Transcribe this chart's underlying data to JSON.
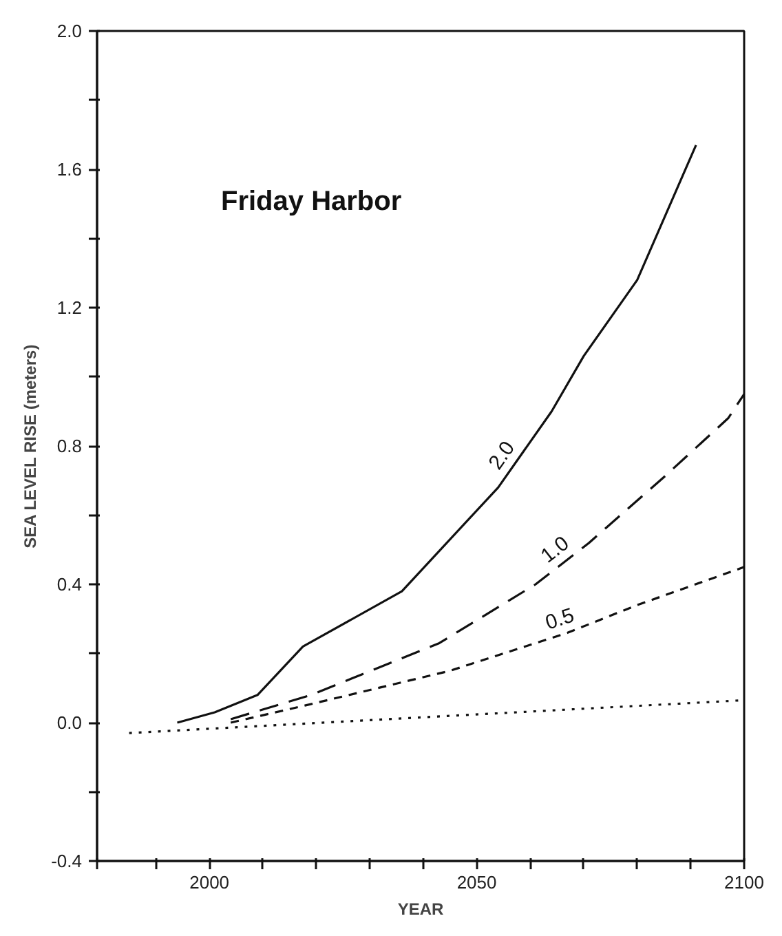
{
  "chart_data": {
    "type": "line",
    "xlabel": "YEAR",
    "ylabel": "SEA LEVEL RISE (meters)",
    "xlim": [
      1979,
      2100
    ],
    "ylim": [
      -0.4,
      2.0
    ],
    "xticks": [
      {
        "value": 1979,
        "label": null
      },
      {
        "value": 1990,
        "label": null
      },
      2000,
      {
        "value": 2010,
        "label": null
      },
      {
        "value": 2020,
        "label": null
      },
      {
        "value": 2030,
        "label": null
      },
      {
        "value": 2040,
        "label": null
      },
      2050,
      {
        "value": 2060,
        "label": null
      },
      {
        "value": 2070,
        "label": null
      },
      {
        "value": 2080,
        "label": null
      },
      {
        "value": 2090,
        "label": null
      },
      2100
    ],
    "yticks": [
      {
        "value": -0.4,
        "label": "-0.4"
      },
      {
        "value": -0.2,
        "label": null
      },
      {
        "value": 0.0,
        "label": "0.0"
      },
      {
        "value": 0.2,
        "label": null
      },
      {
        "value": 0.4,
        "label": "0.4"
      },
      {
        "value": 0.6,
        "label": null
      },
      {
        "value": 0.8,
        "label": "0.8"
      },
      {
        "value": 1.0,
        "label": null
      },
      {
        "value": 1.2,
        "label": "1.2"
      },
      {
        "value": 1.4,
        "label": null
      },
      {
        "value": 1.6,
        "label": "1.6"
      },
      {
        "value": 1.8,
        "label": null
      },
      {
        "value": 2.0,
        "label": "2.0"
      }
    ],
    "grid": false,
    "legend": false,
    "marker": "none",
    "series": [
      {
        "name": "2.0",
        "color": "#111111",
        "line_style": "solid",
        "x": [
          1994,
          2001,
          2009,
          2017.5,
          2036,
          2054,
          2064,
          2070,
          2080,
          2091
        ],
        "values": [
          0.0,
          0.03,
          0.08,
          0.22,
          0.38,
          0.68,
          0.9,
          1.06,
          1.28,
          1.67
        ]
      },
      {
        "name": "1.0",
        "color": "#111111",
        "line_style": "dashed",
        "x": [
          2004,
          2019,
          2043,
          2061,
          2071,
          2085,
          2097,
          2100
        ],
        "values": [
          0.01,
          0.08,
          0.23,
          0.4,
          0.52,
          0.71,
          0.88,
          0.95
        ]
      },
      {
        "name": "0.5",
        "color": "#111111",
        "line_style": "dashed",
        "x": [
          2004,
          2018,
          2045,
          2067,
          2080,
          2100
        ],
        "values": [
          0.0,
          0.05,
          0.15,
          0.26,
          0.34,
          0.45
        ]
      },
      {
        "color": "#111111",
        "line_style": "dotted",
        "x": [
          1985,
          2100
        ],
        "values": [
          -0.03,
          0.065
        ]
      }
    ],
    "annotations": [
      "Friday Harbor"
    ]
  }
}
